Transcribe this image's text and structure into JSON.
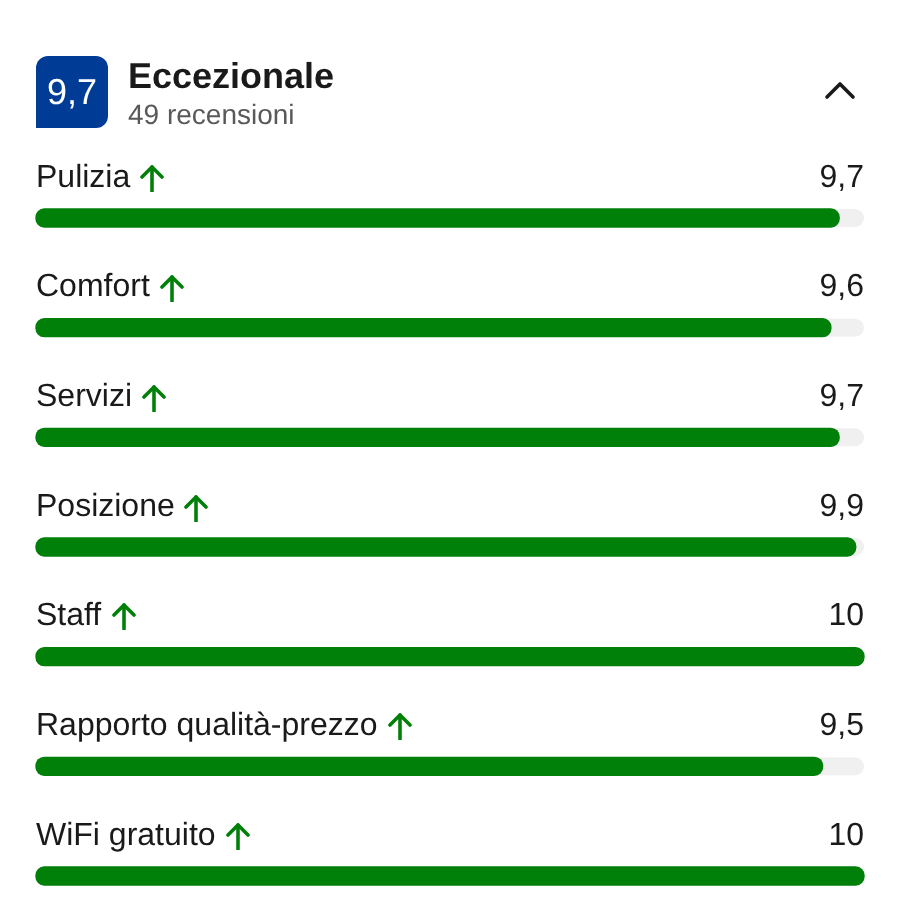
{
  "chart_data": {
    "type": "bar",
    "orientation": "horizontal",
    "title": "Eccezionale",
    "subtitle": "49 recensioni",
    "annotations": [
      "9,7"
    ],
    "categories": [
      "Pulizia",
      "Comfort",
      "Servizi",
      "Posizione",
      "Staff",
      "Rapporto qualità-prezzo",
      "WiFi gratuito"
    ],
    "values": [
      9.7,
      9.6,
      9.7,
      9.9,
      10,
      9.5,
      10
    ],
    "value_labels": [
      "9,7",
      "9,6",
      "9,7",
      "9,9",
      "10",
      "9,5",
      "10"
    ],
    "color": "#008009",
    "xlim": [
      0,
      10
    ],
    "tick_labels": "y",
    "legend": false
  }
}
